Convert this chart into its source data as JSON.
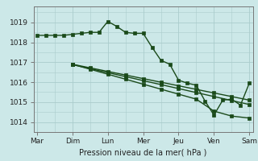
{
  "title": "Pression niveau de la mer( hPa )",
  "bg_color": "#cce8e8",
  "grid_color": "#aacccc",
  "line_color": "#1a4a1a",
  "xlabels": [
    "Mar",
    "Dim",
    "Lun",
    "Mer",
    "Jeu",
    "Ven",
    "Sam"
  ],
  "xticks": [
    0,
    1,
    2,
    3,
    4,
    5,
    6
  ],
  "ylim": [
    1013.5,
    1019.8
  ],
  "yticks": [
    1014,
    1015,
    1016,
    1017,
    1018,
    1019
  ],
  "main_x": [
    0,
    0.25,
    0.5,
    0.75,
    1.0,
    1.25,
    1.5,
    1.75,
    2.0,
    2.25,
    2.5,
    2.75,
    3.0,
    3.25,
    3.5,
    3.75,
    4.0,
    4.25,
    4.5,
    4.75,
    5.0,
    5.25,
    5.5,
    5.75,
    6.0
  ],
  "main_y": [
    1018.35,
    1018.35,
    1018.35,
    1018.35,
    1018.4,
    1018.45,
    1018.5,
    1018.5,
    1019.05,
    1018.8,
    1018.5,
    1018.45,
    1018.45,
    1017.75,
    1017.1,
    1016.9,
    1016.1,
    1015.95,
    1015.85,
    1015.05,
    1014.35,
    1015.1,
    1015.15,
    1014.85,
    1015.95
  ],
  "f1_x": [
    1.0,
    1.5,
    2.0,
    2.5,
    3.0,
    3.5,
    4.0,
    4.5,
    5.0,
    5.5,
    6.0
  ],
  "f1_y": [
    1016.9,
    1016.65,
    1016.4,
    1016.15,
    1015.9,
    1015.65,
    1015.4,
    1015.15,
    1014.55,
    1014.3,
    1014.2
  ],
  "f2_x": [
    1.0,
    1.5,
    2.0,
    2.5,
    3.0,
    3.5,
    4.0,
    4.5,
    5.0,
    5.5,
    6.0
  ],
  "f2_y": [
    1016.9,
    1016.72,
    1016.54,
    1016.36,
    1016.18,
    1016.0,
    1015.82,
    1015.64,
    1015.46,
    1015.28,
    1015.1
  ],
  "f3_x": [
    1.0,
    1.5,
    2.0,
    2.5,
    3.0,
    3.5,
    4.0,
    4.5,
    5.0,
    5.5,
    6.0
  ],
  "f3_y": [
    1016.88,
    1016.68,
    1016.48,
    1016.28,
    1016.08,
    1015.88,
    1015.68,
    1015.48,
    1015.28,
    1015.08,
    1014.88
  ]
}
